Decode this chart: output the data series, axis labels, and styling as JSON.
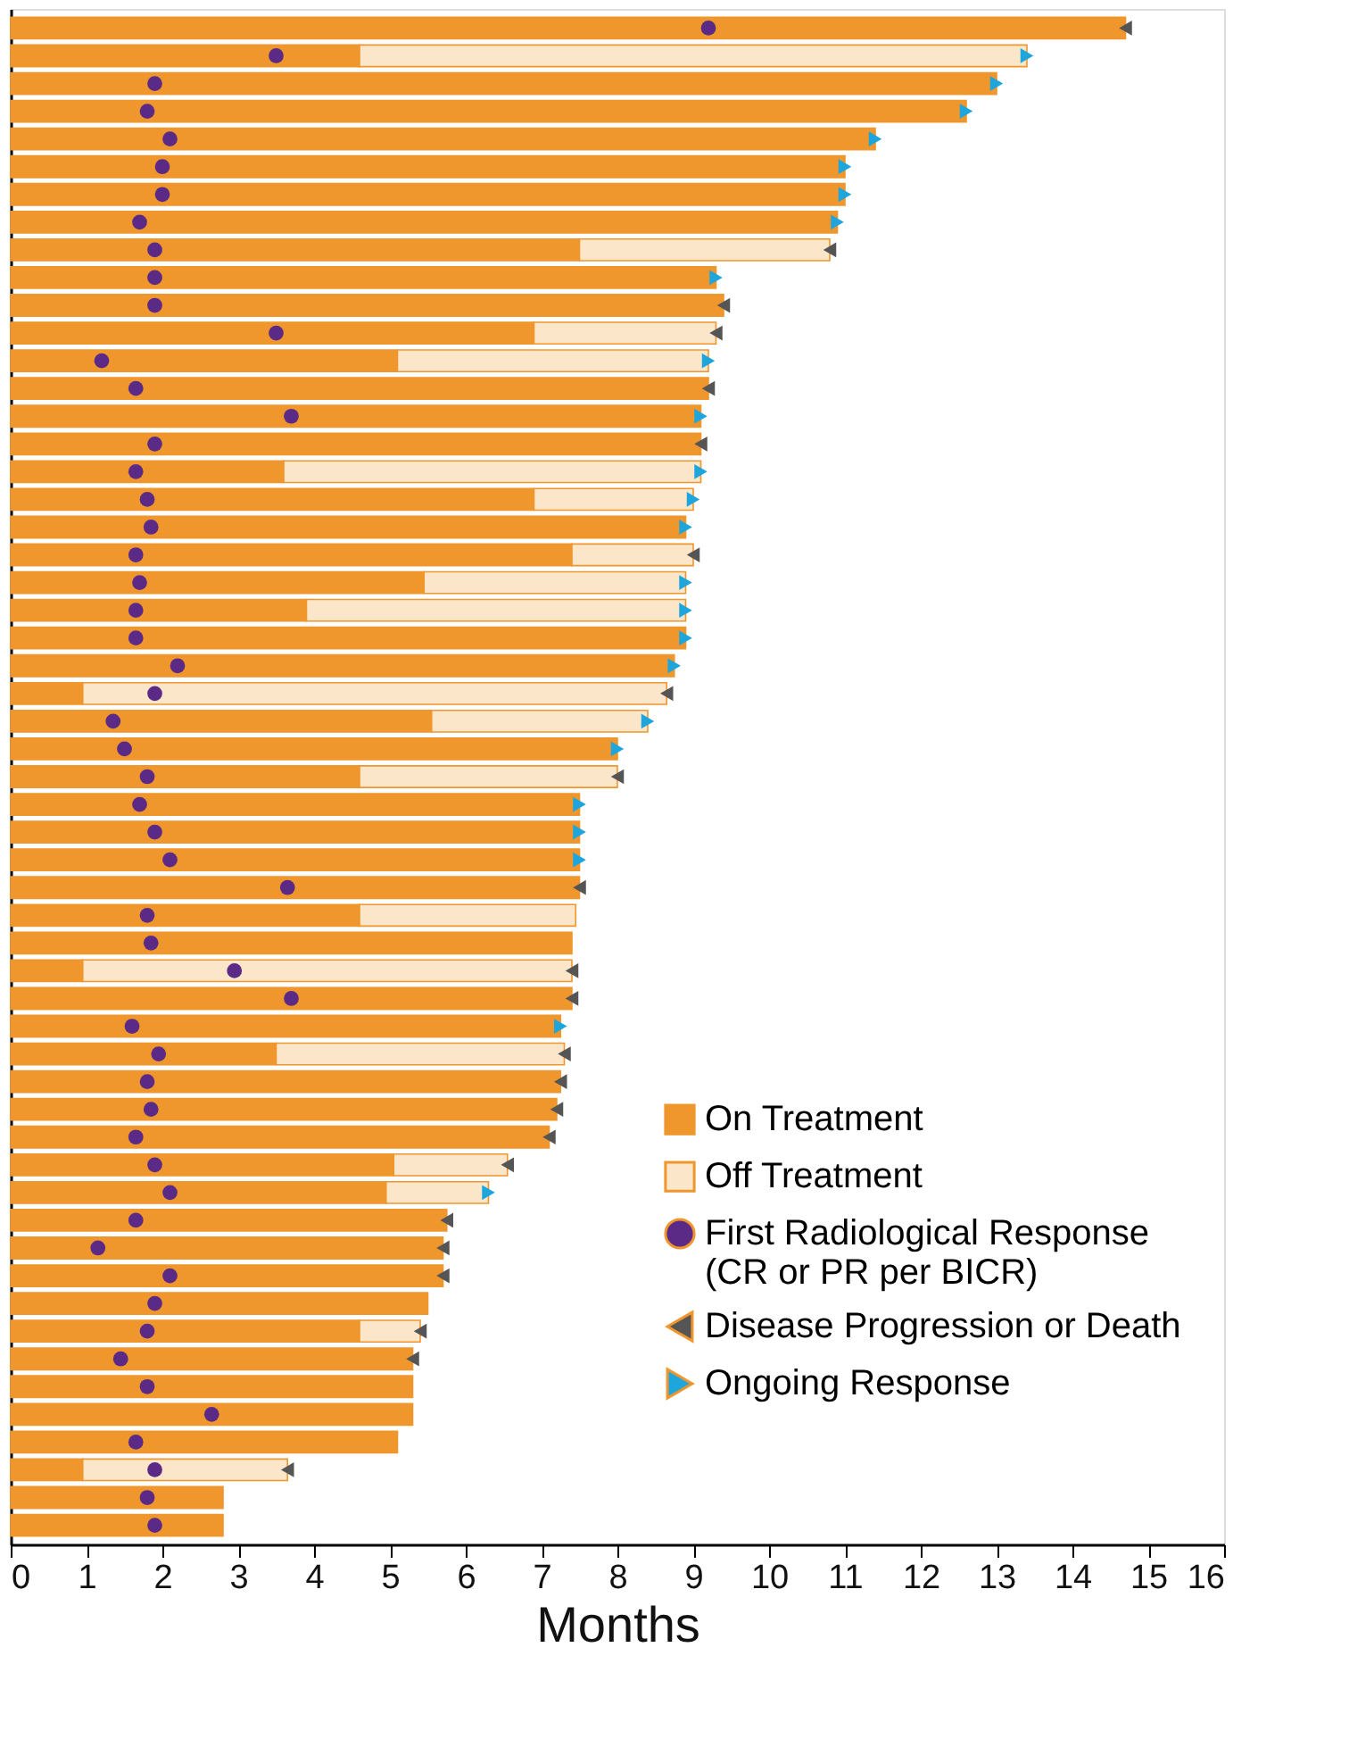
{
  "chart_data": {
    "type": "bar",
    "orientation": "horizontal",
    "stacked": true,
    "xlabel": "Months",
    "xlim": [
      0,
      16
    ],
    "xticks": [
      0,
      1,
      2,
      3,
      4,
      5,
      6,
      7,
      8,
      9,
      10,
      11,
      12,
      13,
      14,
      15,
      16
    ],
    "tick_labels": "x",
    "legend": "bottom right",
    "grid": false,
    "categories": [
      null,
      null,
      null,
      null,
      null,
      null,
      null,
      null,
      null,
      null,
      null,
      null,
      null,
      null,
      null,
      null,
      null,
      null,
      null,
      null,
      null,
      null,
      null,
      null,
      null,
      null,
      null,
      null,
      null,
      null,
      null,
      null,
      null,
      null,
      null,
      null,
      null,
      null,
      null,
      null,
      null,
      null,
      null,
      null,
      null,
      null,
      null,
      null,
      null,
      null,
      null,
      null,
      null,
      null,
      null
    ],
    "series": [
      {
        "name": "On Treatment",
        "color": "#ef962d",
        "values": [
          14.7,
          4.6,
          13.0,
          12.6,
          11.4,
          11.0,
          11.0,
          10.9,
          7.5,
          9.3,
          9.4,
          6.9,
          5.1,
          9.2,
          9.1,
          9.1,
          3.6,
          6.9,
          8.9,
          7.4,
          5.45,
          3.9,
          8.9,
          8.75,
          0.95,
          5.55,
          8.0,
          4.6,
          7.5,
          7.5,
          7.5,
          7.5,
          4.6,
          7.4,
          0.95,
          7.4,
          7.25,
          3.5,
          7.25,
          7.2,
          7.1,
          5.05,
          4.95,
          5.75,
          5.7,
          5.7,
          5.5,
          4.6,
          5.3,
          5.3,
          5.3,
          5.1,
          0.95,
          2.8,
          2.8
        ]
      },
      {
        "name": "Off Treatment",
        "color": "#fce6c9",
        "values": [
          null,
          8.8,
          null,
          null,
          null,
          null,
          null,
          null,
          3.3,
          null,
          null,
          2.4,
          4.1,
          null,
          null,
          null,
          5.5,
          2.1,
          null,
          1.6,
          3.45,
          5.0,
          null,
          null,
          7.7,
          2.85,
          null,
          3.4,
          null,
          null,
          null,
          null,
          2.85,
          null,
          6.45,
          null,
          null,
          3.8,
          null,
          null,
          null,
          1.5,
          1.35,
          null,
          null,
          null,
          null,
          0.8,
          null,
          null,
          null,
          null,
          2.7,
          null,
          null
        ]
      },
      {
        "name": "First Radiological Response\n(CR or PR per BICR)",
        "type": "scatter",
        "marker": "circle",
        "color": "#5b2a86",
        "values": [
          9.2,
          3.5,
          1.9,
          1.8,
          2.1,
          2.0,
          2.0,
          1.7,
          1.9,
          1.9,
          1.9,
          3.5,
          1.2,
          1.65,
          3.7,
          1.9,
          1.65,
          1.8,
          1.85,
          1.65,
          1.7,
          1.65,
          1.65,
          2.2,
          1.9,
          1.35,
          1.5,
          1.8,
          1.7,
          1.9,
          2.1,
          3.65,
          1.8,
          1.85,
          2.95,
          3.7,
          1.6,
          1.95,
          1.8,
          1.85,
          1.65,
          1.9,
          2.1,
          1.65,
          1.15,
          2.1,
          1.9,
          1.8,
          1.45,
          1.8,
          2.65,
          1.65,
          1.9,
          1.8,
          1.9
        ]
      },
      {
        "name": "Disease Progression or Death",
        "type": "scatter",
        "marker": "triangle-left",
        "color": "#555555",
        "values": [
          14.7,
          null,
          null,
          null,
          null,
          null,
          null,
          null,
          10.8,
          null,
          9.4,
          9.3,
          null,
          9.2,
          null,
          9.1,
          null,
          null,
          null,
          9.0,
          null,
          null,
          null,
          null,
          8.65,
          null,
          null,
          8.0,
          null,
          null,
          null,
          7.5,
          null,
          null,
          7.4,
          7.4,
          null,
          7.3,
          7.25,
          7.2,
          7.1,
          6.55,
          null,
          5.75,
          5.7,
          5.7,
          null,
          5.4,
          5.3,
          null,
          null,
          null,
          3.65,
          null,
          null
        ]
      },
      {
        "name": "Ongoing Response",
        "type": "scatter",
        "marker": "triangle-right",
        "color": "#1ea6dc",
        "values": [
          null,
          13.4,
          13.0,
          12.6,
          11.4,
          11.0,
          11.0,
          10.9,
          null,
          9.3,
          null,
          null,
          9.2,
          null,
          9.1,
          null,
          9.1,
          9.0,
          8.9,
          null,
          8.9,
          8.9,
          8.9,
          8.75,
          null,
          8.4,
          8.0,
          null,
          7.5,
          7.5,
          7.5,
          null,
          null,
          null,
          null,
          null,
          7.25,
          null,
          null,
          null,
          null,
          null,
          6.3,
          null,
          null,
          null,
          null,
          null,
          null,
          null,
          null,
          null,
          null,
          null,
          null
        ]
      }
    ]
  }
}
